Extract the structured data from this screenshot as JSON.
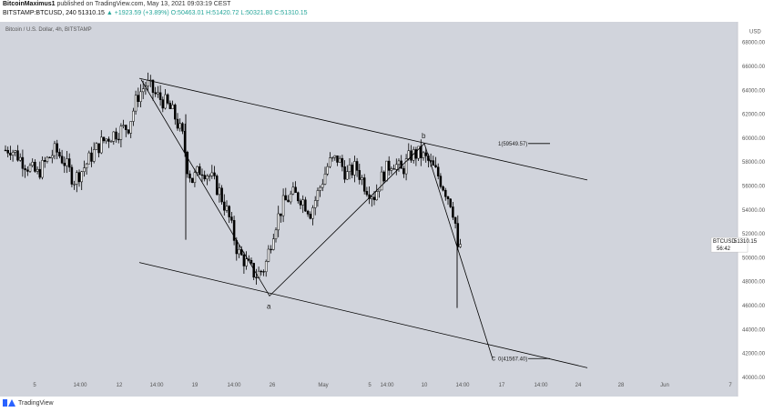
{
  "header": {
    "author": "BitcoinMaximus1",
    "published": " published on TradingView.com, May 13, 2021 09:03:19 CEST",
    "symbol_line_prefix": "BITSTAMP:BTCUSD, 240",
    "last": "51310.15",
    "change": "▲ +1923.59 (+3.89%)",
    "ohlc": "O:50463.01 H:51420.72 L:50321.80 C:51310.15"
  },
  "chart_title": "Bitcoin / U.S. Dollar, 4h, BITSTAMP",
  "footer": {
    "brand": "TradingView"
  },
  "colors": {
    "background": "#d1d4dc",
    "candle": "#000000",
    "line": "#000000",
    "header_positive": "#26a69a"
  },
  "chart_data": {
    "type": "candlestick",
    "title": "Bitcoin / U.S. Dollar, 4h, BITSTAMP",
    "currency": "USD",
    "x_tick_labels": [
      "5",
      "14:00",
      "12",
      "14:00",
      "19",
      "14:00",
      "26",
      "May",
      "5",
      "14:00",
      "10",
      "14:00",
      "17",
      "14:00",
      "24",
      "28",
      "Jun",
      "7"
    ],
    "y_tick_labels": [
      "40000.00",
      "42000.00",
      "44000.00",
      "46000.00",
      "48000.00",
      "50000.00",
      "52000.00",
      "54000.00",
      "56000.00",
      "58000.00",
      "60000.00",
      "62000.00",
      "64000.00",
      "66000.00",
      "68000.00"
    ],
    "ylim": [
      39000,
      69500
    ],
    "approx_closes": [
      [
        0,
        58800
      ],
      [
        10,
        59200
      ],
      [
        20,
        58400
      ],
      [
        30,
        57600
      ],
      [
        40,
        57000
      ],
      [
        50,
        58100
      ],
      [
        60,
        59000
      ],
      [
        70,
        58000
      ],
      [
        80,
        56500
      ],
      [
        90,
        57400
      ],
      [
        100,
        58600
      ],
      [
        110,
        59600
      ],
      [
        120,
        60200
      ],
      [
        130,
        60600
      ],
      [
        140,
        61000
      ],
      [
        150,
        63500
      ],
      [
        160,
        64600
      ],
      [
        170,
        63600
      ],
      [
        180,
        63000
      ],
      [
        190,
        62000
      ],
      [
        200,
        60000
      ],
      [
        205,
        57500
      ],
      [
        210,
        56500
      ],
      [
        220,
        57500
      ],
      [
        230,
        56800
      ],
      [
        240,
        55500
      ],
      [
        250,
        53500
      ],
      [
        260,
        50500
      ],
      [
        270,
        49500
      ],
      [
        280,
        48500
      ],
      [
        290,
        49200
      ],
      [
        300,
        52500
      ],
      [
        310,
        54500
      ],
      [
        320,
        55300
      ],
      [
        330,
        55000
      ],
      [
        340,
        53800
      ],
      [
        350,
        55800
      ],
      [
        360,
        57900
      ],
      [
        370,
        58300
      ],
      [
        380,
        56900
      ],
      [
        390,
        57600
      ],
      [
        400,
        56000
      ],
      [
        410,
        55200
      ],
      [
        420,
        57000
      ],
      [
        430,
        58100
      ],
      [
        440,
        57200
      ],
      [
        450,
        58600
      ],
      [
        460,
        58700
      ],
      [
        470,
        58000
      ],
      [
        480,
        56900
      ],
      [
        490,
        55300
      ],
      [
        495,
        54500
      ],
      [
        500,
        52500
      ],
      [
        502,
        50200
      ],
      [
        505,
        51310
      ]
    ],
    "current_price_label": "BTCUSD",
    "current_price": "51310.15",
    "countdown": "56:42",
    "annotations": {
      "wave_a": "a",
      "wave_b": "b",
      "wave_c": "c",
      "fib_1": "1(59549.57)",
      "fib_0": "0(41567.40)"
    },
    "channel_upper": [
      [
        153,
        65000
      ],
      [
        645,
        56500
      ]
    ],
    "channel_lower": [
      [
        153,
        49600
      ],
      [
        645,
        40800
      ]
    ],
    "waves": [
      [
        155,
        64900
      ],
      [
        296,
        46800
      ],
      [
        466,
        59550
      ],
      [
        541,
        41550
      ]
    ]
  }
}
